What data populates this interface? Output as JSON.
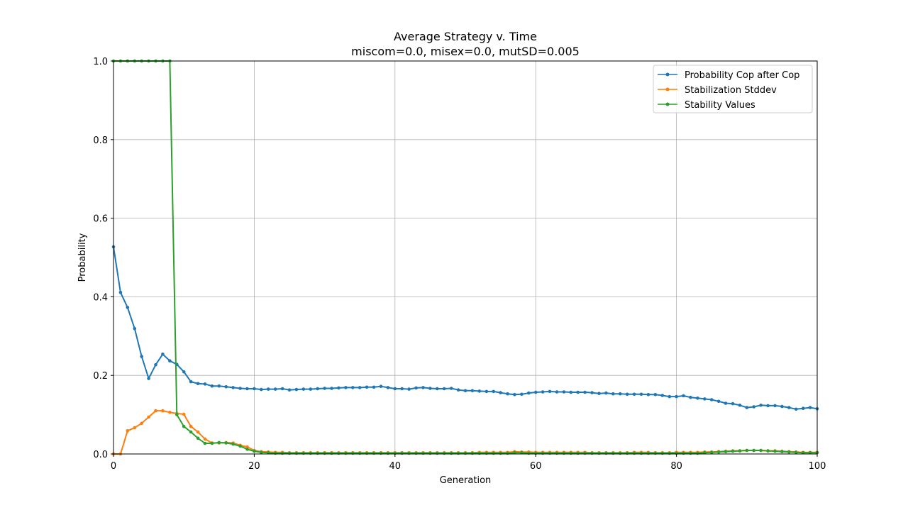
{
  "chart_data": {
    "type": "line",
    "title": "Average Strategy v. Time",
    "subtitle": "miscom=0.0, misex=0.0, mutSD=0.005",
    "xlabel": "Generation",
    "ylabel": "Probability",
    "xlim": [
      0,
      100
    ],
    "ylim": [
      0,
      1.0
    ],
    "x_ticks": [
      0,
      20,
      40,
      60,
      80,
      100
    ],
    "y_ticks": [
      "0.0",
      "0.2",
      "0.4",
      "0.6",
      "0.8",
      "1.0"
    ],
    "grid": true,
    "legend_position": "top-right",
    "x": [
      0,
      1,
      2,
      3,
      4,
      5,
      6,
      7,
      8,
      9,
      10,
      11,
      12,
      13,
      14,
      15,
      16,
      17,
      18,
      19,
      20,
      21,
      22,
      23,
      24,
      25,
      26,
      27,
      28,
      29,
      30,
      31,
      32,
      33,
      34,
      35,
      36,
      37,
      38,
      39,
      40,
      41,
      42,
      43,
      44,
      45,
      46,
      47,
      48,
      49,
      50,
      51,
      52,
      53,
      54,
      55,
      56,
      57,
      58,
      59,
      60,
      61,
      62,
      63,
      64,
      65,
      66,
      67,
      68,
      69,
      70,
      71,
      72,
      73,
      74,
      75,
      76,
      77,
      78,
      79,
      80,
      81,
      82,
      83,
      84,
      85,
      86,
      87,
      88,
      89,
      90,
      91,
      92,
      93,
      94,
      95,
      96,
      97,
      98,
      99,
      100
    ],
    "series": [
      {
        "name": "Probability Cop after Cop",
        "color": "#1f77b4",
        "values": [
          0.527,
          0.411,
          0.373,
          0.319,
          0.248,
          0.192,
          0.227,
          0.254,
          0.237,
          0.228,
          0.209,
          0.184,
          0.179,
          0.178,
          0.173,
          0.173,
          0.171,
          0.169,
          0.167,
          0.166,
          0.166,
          0.164,
          0.165,
          0.165,
          0.166,
          0.163,
          0.164,
          0.165,
          0.165,
          0.166,
          0.167,
          0.167,
          0.168,
          0.169,
          0.169,
          0.169,
          0.17,
          0.17,
          0.172,
          0.169,
          0.166,
          0.166,
          0.165,
          0.168,
          0.169,
          0.167,
          0.166,
          0.166,
          0.167,
          0.163,
          0.161,
          0.161,
          0.16,
          0.159,
          0.159,
          0.156,
          0.153,
          0.151,
          0.152,
          0.155,
          0.157,
          0.158,
          0.159,
          0.158,
          0.158,
          0.157,
          0.157,
          0.157,
          0.156,
          0.154,
          0.155,
          0.153,
          0.153,
          0.152,
          0.152,
          0.152,
          0.151,
          0.151,
          0.149,
          0.146,
          0.146,
          0.148,
          0.144,
          0.142,
          0.14,
          0.138,
          0.134,
          0.129,
          0.128,
          0.124,
          0.118,
          0.12,
          0.124,
          0.123,
          0.123,
          0.121,
          0.118,
          0.114,
          0.116,
          0.118,
          0.115
        ]
      },
      {
        "name": "Stabilization Stddev",
        "color": "#ff7f0e",
        "values": [
          0.0,
          0.0,
          0.059,
          0.067,
          0.078,
          0.094,
          0.11,
          0.11,
          0.106,
          0.103,
          0.101,
          0.07,
          0.056,
          0.038,
          0.028,
          0.028,
          0.029,
          0.028,
          0.022,
          0.018,
          0.009,
          0.006,
          0.005,
          0.004,
          0.004,
          0.003,
          0.003,
          0.003,
          0.003,
          0.003,
          0.003,
          0.003,
          0.003,
          0.003,
          0.003,
          0.003,
          0.003,
          0.003,
          0.003,
          0.003,
          0.003,
          0.003,
          0.003,
          0.003,
          0.003,
          0.003,
          0.003,
          0.003,
          0.003,
          0.003,
          0.003,
          0.003,
          0.004,
          0.004,
          0.004,
          0.004,
          0.004,
          0.006,
          0.005,
          0.005,
          0.004,
          0.004,
          0.004,
          0.004,
          0.004,
          0.004,
          0.004,
          0.004,
          0.003,
          0.003,
          0.003,
          0.003,
          0.003,
          0.003,
          0.004,
          0.004,
          0.004,
          0.003,
          0.003,
          0.003,
          0.004,
          0.004,
          0.004,
          0.004,
          0.005,
          0.005,
          0.006,
          0.007,
          0.008,
          0.008,
          0.009,
          0.009,
          0.009,
          0.008,
          0.008,
          0.007,
          0.006,
          0.005,
          0.004,
          0.004,
          0.004
        ]
      },
      {
        "name": "Stability Values",
        "color": "#2ca02c",
        "values": [
          1.0,
          1.0,
          1.0,
          1.0,
          1.0,
          1.0,
          1.0,
          1.0,
          1.0,
          0.1,
          0.07,
          0.056,
          0.04,
          0.027,
          0.027,
          0.029,
          0.028,
          0.025,
          0.02,
          0.012,
          0.007,
          0.004,
          0.003,
          0.002,
          0.002,
          0.002,
          0.002,
          0.002,
          0.002,
          0.002,
          0.002,
          0.002,
          0.002,
          0.002,
          0.002,
          0.002,
          0.002,
          0.002,
          0.002,
          0.002,
          0.002,
          0.002,
          0.002,
          0.002,
          0.002,
          0.002,
          0.002,
          0.002,
          0.002,
          0.002,
          0.002,
          0.002,
          0.002,
          0.002,
          0.002,
          0.002,
          0.002,
          0.003,
          0.003,
          0.002,
          0.002,
          0.002,
          0.002,
          0.002,
          0.002,
          0.002,
          0.002,
          0.002,
          0.002,
          0.002,
          0.002,
          0.002,
          0.002,
          0.002,
          0.002,
          0.002,
          0.002,
          0.002,
          0.002,
          0.002,
          0.002,
          0.002,
          0.002,
          0.002,
          0.003,
          0.004,
          0.005,
          0.006,
          0.007,
          0.008,
          0.009,
          0.009,
          0.009,
          0.008,
          0.007,
          0.006,
          0.005,
          0.004,
          0.003,
          0.003,
          0.003
        ]
      }
    ]
  }
}
